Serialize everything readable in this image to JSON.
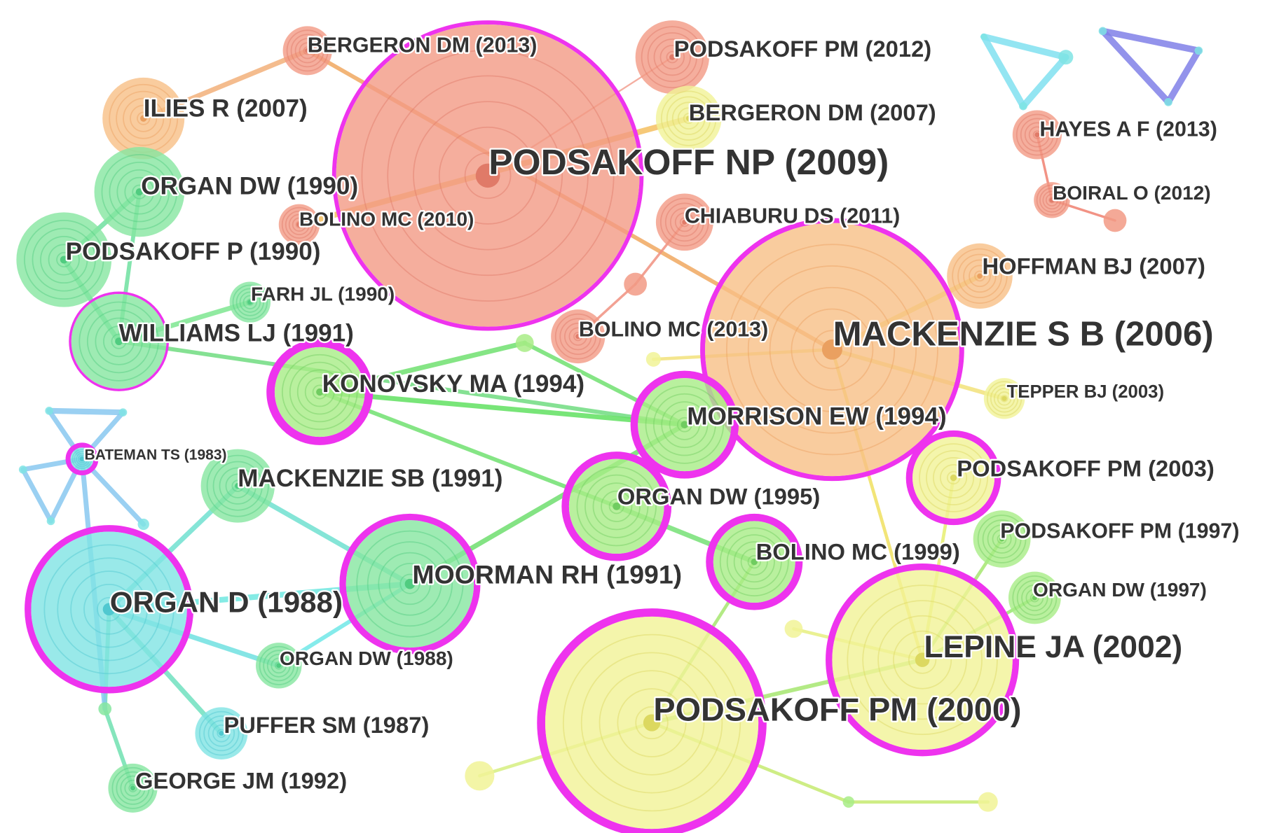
{
  "nodes": [
    {
      "label": "BERGERON DM (2013)"
    },
    {
      "label": "ILIES R (2007)"
    },
    {
      "label": "ORGAN DW (1990)"
    },
    {
      "label": "PODSAKOFF P (1990)"
    },
    {
      "label": "BOLINO MC (2010)"
    },
    {
      "label": "PODSAKOFF NP (2009)"
    },
    {
      "label": "PODSAKOFF PM (2012)"
    },
    {
      "label": "BERGERON DM (2007)"
    },
    {
      "label": "CHIABURU DS (2011)"
    },
    {
      "label": "HAYES A F (2013)"
    },
    {
      "label": "BOIRAL O (2012)"
    },
    {
      "label": "FARH JL (1990)"
    },
    {
      "label": "HOFFMAN BJ (2007)"
    },
    {
      "label": "WILLIAMS LJ (1991)"
    },
    {
      "label": "BOLINO MC (2013)"
    },
    {
      "label": "MACKENZIE S B (2006)"
    },
    {
      "label": "KONOVSKY MA (1994)"
    },
    {
      "label": "TEPPER BJ (2003)"
    },
    {
      "label": "MORRISON EW (1994)"
    },
    {
      "label": "BATEMAN TS (1983)"
    },
    {
      "label": "MACKENZIE SB (1991)"
    },
    {
      "label": "PODSAKOFF PM (2003)"
    },
    {
      "label": "ORGAN DW (1995)"
    },
    {
      "label": "PODSAKOFF PM (1997)"
    },
    {
      "label": "BOLINO MC (1999)"
    },
    {
      "label": "MOORMAN RH (1991)"
    },
    {
      "label": "ORGAN D (1988)"
    },
    {
      "label": "ORGAN DW (1997)"
    },
    {
      "label": "ORGAN DW (1988)"
    },
    {
      "label": "LEPINE JA (2002)"
    },
    {
      "label": "PODSAKOFF PM (2000)"
    },
    {
      "label": "PUFFER SM (1987)"
    },
    {
      "label": "GEORGE JM (1992)"
    }
  ]
}
